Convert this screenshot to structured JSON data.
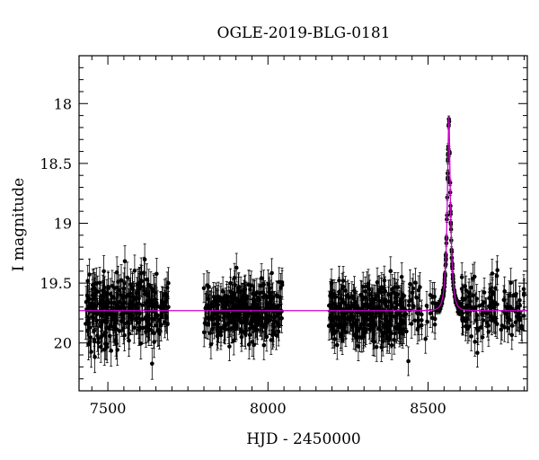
{
  "chart_data": {
    "type": "scatter",
    "title": "OGLE-2019-BLG-0181",
    "xlabel": "HJD - 2450000",
    "ylabel": "I magnitude",
    "xlim": [
      7410,
      8810
    ],
    "ylim": [
      20.4,
      17.6
    ],
    "y_inverted": true,
    "x_ticks": [
      7500,
      8000,
      8500
    ],
    "y_ticks": [
      18,
      18.5,
      19,
      19.5,
      20
    ],
    "x_minor_step": 50,
    "y_minor_step": 0.1,
    "colors": {
      "data": "#000000",
      "model": "#cc00cc"
    },
    "baseline_mag": 19.73,
    "model": {
      "baseline": 19.73,
      "peak_mag": 18.12,
      "t0": 8565,
      "tE": 12,
      "samples": [
        {
          "x": 7410,
          "y": 19.73
        },
        {
          "x": 8000,
          "y": 19.73
        },
        {
          "x": 8400,
          "y": 19.72
        },
        {
          "x": 8450,
          "y": 19.7
        },
        {
          "x": 8480,
          "y": 19.66
        },
        {
          "x": 8500,
          "y": 19.6
        },
        {
          "x": 8515,
          "y": 19.52
        },
        {
          "x": 8530,
          "y": 19.37
        },
        {
          "x": 8540,
          "y": 19.17
        },
        {
          "x": 8548,
          "y": 18.92
        },
        {
          "x": 8555,
          "y": 18.59
        },
        {
          "x": 8560,
          "y": 18.33
        },
        {
          "x": 8565,
          "y": 18.12
        },
        {
          "x": 8570,
          "y": 18.33
        },
        {
          "x": 8575,
          "y": 18.59
        },
        {
          "x": 8582,
          "y": 18.92
        },
        {
          "x": 8590,
          "y": 19.17
        },
        {
          "x": 8600,
          "y": 19.37
        },
        {
          "x": 8615,
          "y": 19.52
        },
        {
          "x": 8630,
          "y": 19.6
        },
        {
          "x": 8650,
          "y": 19.66
        },
        {
          "x": 8680,
          "y": 19.7
        },
        {
          "x": 8730,
          "y": 19.72
        },
        {
          "x": 8810,
          "y": 19.73
        }
      ]
    },
    "seasons": [
      {
        "start": 7430,
        "end": 7690,
        "mean_mag": 19.73,
        "scatter": 0.15,
        "err": 0.13
      },
      {
        "start": 7800,
        "end": 8045,
        "mean_mag": 19.73,
        "scatter": 0.12,
        "err": 0.12
      },
      {
        "start": 8190,
        "end": 8430,
        "mean_mag": 19.74,
        "scatter": 0.13,
        "err": 0.12
      },
      {
        "start": 8430,
        "end": 8800,
        "mean_mag": null,
        "scatter": 0.13,
        "err": 0.12
      }
    ]
  }
}
